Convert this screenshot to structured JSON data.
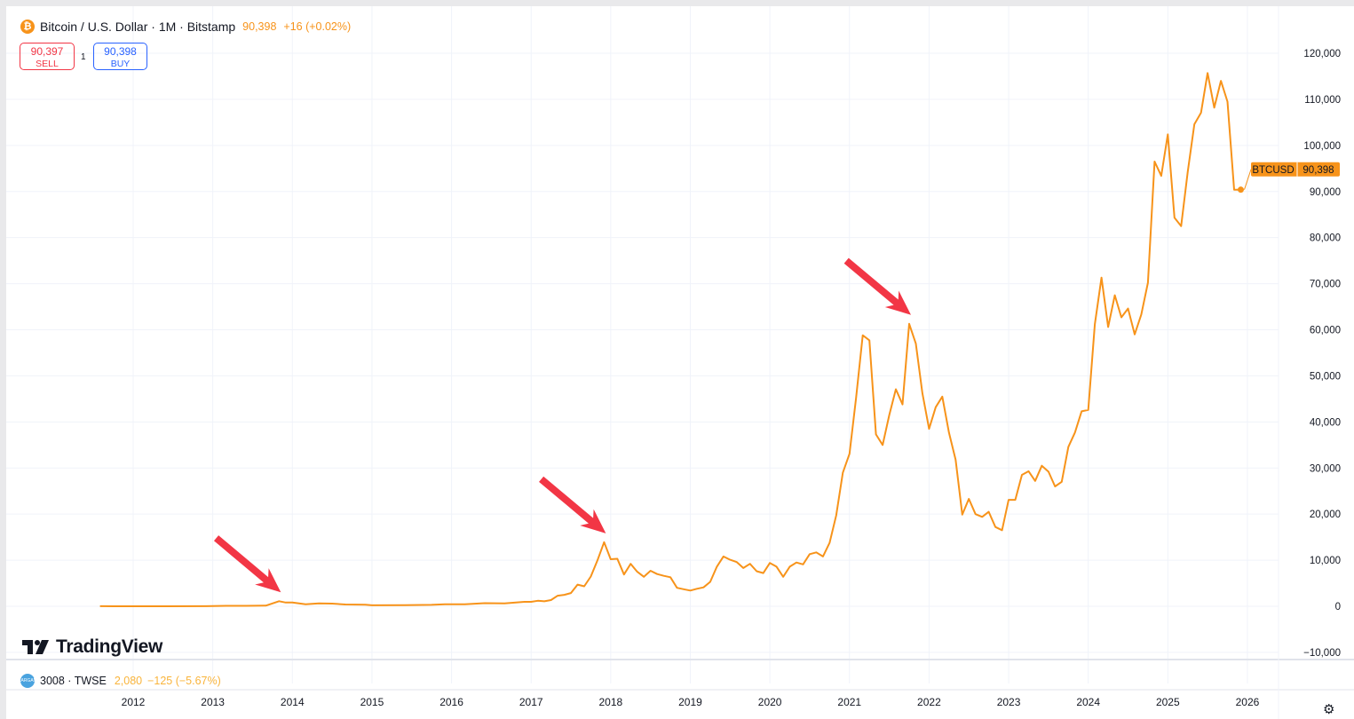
{
  "header": {
    "symbol_title": "Bitcoin / U.S. Dollar · 1M · Bitstamp",
    "last_price": "90,398",
    "change": "+16 (+0.02%)",
    "sell_price": "90,397",
    "sell_label": "SELL",
    "spread": "1",
    "buy_price": "90,398",
    "buy_label": "BUY",
    "coin_icon_glyph": "₿"
  },
  "price_label": {
    "symbol": "BTCUSD",
    "value": "90,398"
  },
  "logo": "TradingView",
  "lower_pane": {
    "symbol": "3008 · TWSE",
    "icon_text": "LARGAN",
    "value": "2,080",
    "change": "−125 (−5.67%)"
  },
  "colors": {
    "line": "#f7931a",
    "sell": "#f23645",
    "buy": "#2962ff",
    "arrow": "#f23645",
    "lower_value": "#f9b43b"
  },
  "icons": {
    "settings": "gear-icon"
  },
  "chart_data": {
    "type": "line",
    "title": "Bitcoin / U.S. Dollar · 1M · Bitstamp",
    "xlabel": "",
    "ylabel": "",
    "ylim": [
      -10000,
      120000
    ],
    "y_ticks": [
      "120,000",
      "110,000",
      "100,000",
      "90,000",
      "80,000",
      "70,000",
      "60,000",
      "50,000",
      "40,000",
      "30,000",
      "20,000",
      "10,000",
      "0",
      "−10,000"
    ],
    "y_tick_values": [
      120000,
      110000,
      100000,
      90000,
      80000,
      70000,
      60000,
      50000,
      40000,
      30000,
      20000,
      10000,
      0,
      -10000
    ],
    "x_ticks": [
      "2012",
      "2013",
      "2014",
      "2015",
      "2016",
      "2017",
      "2018",
      "2019",
      "2020",
      "2021",
      "2022",
      "2023",
      "2024",
      "2025",
      "2026"
    ],
    "grid": true,
    "annotations": [
      {
        "type": "arrow",
        "target": "2013-11"
      },
      {
        "type": "arrow",
        "target": "2017-12"
      },
      {
        "type": "arrow",
        "target": "2021-10"
      }
    ],
    "series": [
      {
        "name": "BTCUSD",
        "points": [
          [
            "2011-08",
            10
          ],
          [
            "2011-12",
            4
          ],
          [
            "2012-06",
            6
          ],
          [
            "2012-12",
            13
          ],
          [
            "2013-03",
            90
          ],
          [
            "2013-06",
            100
          ],
          [
            "2013-09",
            130
          ],
          [
            "2013-11",
            1100
          ],
          [
            "2013-12",
            800
          ],
          [
            "2014-01",
            830
          ],
          [
            "2014-03",
            450
          ],
          [
            "2014-05",
            620
          ],
          [
            "2014-07",
            580
          ],
          [
            "2014-09",
            390
          ],
          [
            "2014-12",
            320
          ],
          [
            "2015-01",
            220
          ],
          [
            "2015-06",
            260
          ],
          [
            "2015-10",
            310
          ],
          [
            "2015-12",
            430
          ],
          [
            "2016-03",
            415
          ],
          [
            "2016-06",
            670
          ],
          [
            "2016-09",
            610
          ],
          [
            "2016-12",
            960
          ],
          [
            "2017-01",
            970
          ],
          [
            "2017-02",
            1190
          ],
          [
            "2017-03",
            1080
          ],
          [
            "2017-04",
            1350
          ],
          [
            "2017-05",
            2300
          ],
          [
            "2017-06",
            2480
          ],
          [
            "2017-07",
            2870
          ],
          [
            "2017-08",
            4700
          ],
          [
            "2017-09",
            4340
          ],
          [
            "2017-10",
            6450
          ],
          [
            "2017-11",
            9950
          ],
          [
            "2017-12",
            13900
          ],
          [
            "2018-01",
            10200
          ],
          [
            "2018-02",
            10300
          ],
          [
            "2018-03",
            6900
          ],
          [
            "2018-04",
            9200
          ],
          [
            "2018-05",
            7500
          ],
          [
            "2018-06",
            6400
          ],
          [
            "2018-07",
            7700
          ],
          [
            "2018-08",
            7000
          ],
          [
            "2018-09",
            6600
          ],
          [
            "2018-10",
            6300
          ],
          [
            "2018-11",
            4000
          ],
          [
            "2018-12",
            3700
          ],
          [
            "2019-01",
            3400
          ],
          [
            "2019-02",
            3800
          ],
          [
            "2019-03",
            4100
          ],
          [
            "2019-04",
            5300
          ],
          [
            "2019-05",
            8600
          ],
          [
            "2019-06",
            10800
          ],
          [
            "2019-07",
            10100
          ],
          [
            "2019-08",
            9600
          ],
          [
            "2019-09",
            8300
          ],
          [
            "2019-10",
            9200
          ],
          [
            "2019-11",
            7600
          ],
          [
            "2019-12",
            7200
          ],
          [
            "2020-01",
            9400
          ],
          [
            "2020-02",
            8600
          ],
          [
            "2020-03",
            6400
          ],
          [
            "2020-04",
            8600
          ],
          [
            "2020-05",
            9500
          ],
          [
            "2020-06",
            9100
          ],
          [
            "2020-07",
            11300
          ],
          [
            "2020-08",
            11700
          ],
          [
            "2020-09",
            10800
          ],
          [
            "2020-10",
            13800
          ],
          [
            "2020-11",
            19700
          ],
          [
            "2020-12",
            29000
          ],
          [
            "2021-01",
            33100
          ],
          [
            "2021-02",
            45200
          ],
          [
            "2021-03",
            58800
          ],
          [
            "2021-04",
            57700
          ],
          [
            "2021-05",
            37300
          ],
          [
            "2021-06",
            35000
          ],
          [
            "2021-07",
            41500
          ],
          [
            "2021-08",
            47100
          ],
          [
            "2021-09",
            43800
          ],
          [
            "2021-10",
            61300
          ],
          [
            "2021-11",
            57000
          ],
          [
            "2021-12",
            46200
          ],
          [
            "2022-01",
            38500
          ],
          [
            "2022-02",
            43200
          ],
          [
            "2022-03",
            45500
          ],
          [
            "2022-04",
            37700
          ],
          [
            "2022-05",
            31800
          ],
          [
            "2022-06",
            19900
          ],
          [
            "2022-07",
            23300
          ],
          [
            "2022-08",
            20000
          ],
          [
            "2022-09",
            19400
          ],
          [
            "2022-10",
            20500
          ],
          [
            "2022-11",
            17200
          ],
          [
            "2022-12",
            16500
          ],
          [
            "2023-01",
            23100
          ],
          [
            "2023-02",
            23100
          ],
          [
            "2023-03",
            28500
          ],
          [
            "2023-04",
            29300
          ],
          [
            "2023-05",
            27200
          ],
          [
            "2023-06",
            30500
          ],
          [
            "2023-07",
            29200
          ],
          [
            "2023-08",
            26000
          ],
          [
            "2023-09",
            27000
          ],
          [
            "2023-10",
            34600
          ],
          [
            "2023-11",
            37700
          ],
          [
            "2023-12",
            42300
          ],
          [
            "2024-01",
            42600
          ],
          [
            "2024-02",
            61200
          ],
          [
            "2024-03",
            71300
          ],
          [
            "2024-04",
            60600
          ],
          [
            "2024-05",
            67500
          ],
          [
            "2024-06",
            62700
          ],
          [
            "2024-07",
            64600
          ],
          [
            "2024-08",
            59000
          ],
          [
            "2024-09",
            63300
          ],
          [
            "2024-10",
            70200
          ],
          [
            "2024-11",
            96500
          ],
          [
            "2024-12",
            93400
          ],
          [
            "2025-01",
            102400
          ],
          [
            "2025-02",
            84300
          ],
          [
            "2025-03",
            82500
          ],
          [
            "2025-04",
            94200
          ],
          [
            "2025-05",
            104600
          ],
          [
            "2025-06",
            107100
          ],
          [
            "2025-07",
            115700
          ],
          [
            "2025-08",
            108200
          ],
          [
            "2025-09",
            114000
          ],
          [
            "2025-10",
            109500
          ],
          [
            "2025-11",
            90400
          ],
          [
            "2025-12",
            90398
          ]
        ]
      }
    ]
  }
}
